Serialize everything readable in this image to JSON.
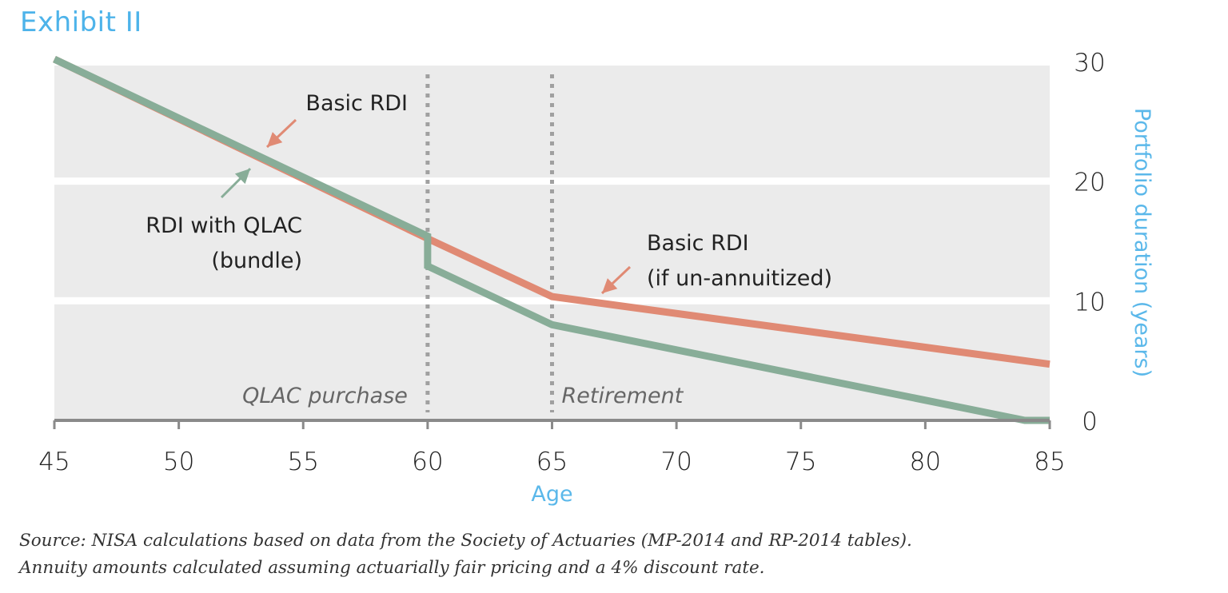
{
  "title": "Exhibit II",
  "chart_data": {
    "type": "line",
    "title": "Exhibit II",
    "xlabel": "Age",
    "ylabel": "Portfolio duration (years)",
    "xlim": [
      45,
      85
    ],
    "ylim": [
      0,
      30
    ],
    "x_ticks": [
      45,
      50,
      55,
      60,
      65,
      70,
      75,
      80,
      85
    ],
    "y_ticks": [
      0,
      10,
      20,
      30
    ],
    "y_axis_side": "right",
    "grid": "horizontal bands",
    "series": [
      {
        "name": "Basic RDI",
        "color": "#e08a74",
        "points": [
          [
            45,
            30.2
          ],
          [
            60,
            15.2
          ],
          [
            65,
            10.35
          ],
          [
            85,
            4.7
          ]
        ]
      },
      {
        "name": "RDI with QLAC (bundle)",
        "color": "#88ad98",
        "points": [
          [
            45,
            30.2
          ],
          [
            60,
            15.4
          ],
          [
            60,
            12.9
          ],
          [
            65,
            8.0
          ],
          [
            84,
            0
          ],
          [
            85,
            0
          ]
        ]
      }
    ],
    "vertical_markers": [
      {
        "x": 60,
        "label": "QLAC purchase"
      },
      {
        "x": 65,
        "label": "Retirement"
      }
    ],
    "annotations": [
      {
        "text_lines": [
          "Basic RDI"
        ],
        "series": "Basic RDI",
        "color": "#e08a74"
      },
      {
        "text_lines": [
          "RDI with QLAC",
          "(bundle)"
        ],
        "series": "RDI with QLAC (bundle)",
        "color": "#88ad98"
      },
      {
        "text_lines": [
          "Basic RDI",
          "(if un-annuitized)"
        ],
        "series": "Basic RDI",
        "color": "#e08a74"
      }
    ]
  },
  "source_lines": [
    "Source: NISA calculations based on data from the Society of Actuaries (MP-2014 and RP-2014 tables).",
    "Annuity amounts calculated assuming actuarially fair pricing and a 4% discount rate."
  ],
  "colors": {
    "title": "#4db3ea",
    "axis_title": "#5bb8ea",
    "band": "#ebebeb",
    "axis": "#8a8a8a",
    "marker": "#a0a0a0"
  }
}
